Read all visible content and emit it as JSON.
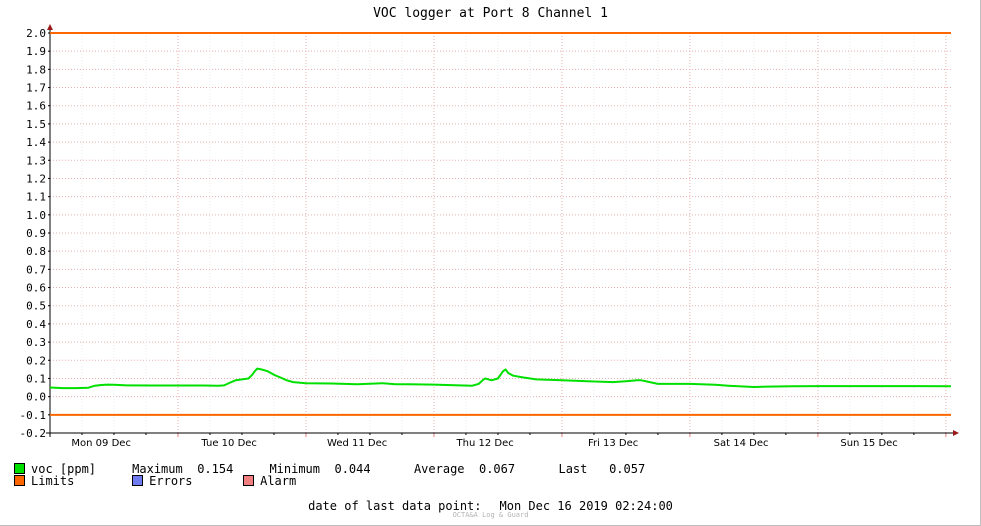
{
  "chart_data": {
    "type": "line",
    "title": "VOC logger at Port 8 Channel 1",
    "ylim": [
      -0.2,
      2.0
    ],
    "grid": true,
    "yticks": [
      "2.0",
      "1.9",
      "1.8",
      "1.7",
      "1.6",
      "1.5",
      "1.4",
      "1.3",
      "1.2",
      "1.1",
      "1.0",
      "0.9",
      "0.8",
      "0.7",
      "0.6",
      "0.5",
      "0.4",
      "0.3",
      "0.2",
      "0.1",
      "0.0",
      "-0.1",
      "-0.2"
    ],
    "xlim": [
      0,
      7.04
    ],
    "day_labels": [
      "Mon 09 Dec",
      "Tue 10 Dec",
      "Wed 11 Dec",
      "Thu 12 Dec",
      "Fri 13 Dec",
      "Sat 14 Dec",
      "Sun 15 Dec"
    ],
    "limits": {
      "upper": 2.0,
      "lower": -0.1
    },
    "series": [
      {
        "name": "voc [ppm]",
        "color": "#00e000",
        "x": [
          0.0,
          0.1,
          0.2,
          0.3,
          0.35,
          0.4,
          0.45,
          0.5,
          0.6,
          0.8,
          1.0,
          1.1,
          1.2,
          1.3,
          1.32,
          1.36,
          1.4,
          1.45,
          1.5,
          1.55,
          1.58,
          1.6,
          1.62,
          1.65,
          1.7,
          1.75,
          1.8,
          1.85,
          1.9,
          2.0,
          2.2,
          2.4,
          2.6,
          2.7,
          2.8,
          3.0,
          3.2,
          3.3,
          3.35,
          3.38,
          3.4,
          3.42,
          3.45,
          3.5,
          3.54,
          3.56,
          3.58,
          3.62,
          3.7,
          3.8,
          4.0,
          4.2,
          4.4,
          4.5,
          4.58,
          4.62,
          4.66,
          4.75,
          5.0,
          5.2,
          5.3,
          5.5,
          5.6,
          5.8,
          6.0,
          6.2,
          6.4,
          6.6,
          6.8,
          7.04
        ],
        "y": [
          0.05,
          0.047,
          0.047,
          0.049,
          0.06,
          0.064,
          0.066,
          0.065,
          0.062,
          0.061,
          0.061,
          0.061,
          0.061,
          0.06,
          0.06,
          0.062,
          0.075,
          0.09,
          0.095,
          0.1,
          0.12,
          0.14,
          0.154,
          0.15,
          0.14,
          0.12,
          0.105,
          0.09,
          0.08,
          0.074,
          0.072,
          0.068,
          0.074,
          0.068,
          0.068,
          0.066,
          0.062,
          0.06,
          0.07,
          0.09,
          0.1,
          0.096,
          0.09,
          0.1,
          0.14,
          0.15,
          0.13,
          0.115,
          0.105,
          0.095,
          0.09,
          0.085,
          0.08,
          0.085,
          0.09,
          0.09,
          0.084,
          0.07,
          0.07,
          0.065,
          0.06,
          0.053,
          0.055,
          0.057,
          0.058,
          0.058,
          0.058,
          0.058,
          0.058,
          0.057
        ]
      }
    ]
  },
  "legend": {
    "series_label": "voc [ppm]",
    "max_label": "Maximum",
    "max_value": "0.154",
    "min_label": "Minimum",
    "min_value": "0.044",
    "avg_label": "Average",
    "avg_value": "0.067",
    "last_label": "Last",
    "last_value": "0.057",
    "limits_label": "Limits",
    "errors_label": "Errors",
    "alarm_label": "Alarm",
    "series_color": "#00e000",
    "limits_color": "#ff6600",
    "errors_color": "#6e7cf0",
    "alarm_color": "#f08080"
  },
  "footer": {
    "last_point_label": "date of last data point:",
    "last_point_value": "Mon Dec 16 2019 02:24:00",
    "credit": "OCTA&A Log & Guard"
  }
}
